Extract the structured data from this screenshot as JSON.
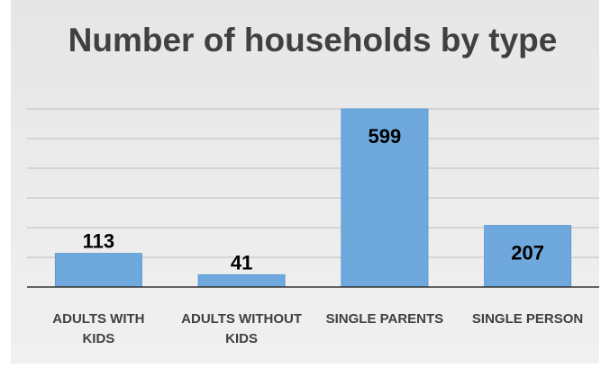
{
  "chart_data": {
    "type": "bar",
    "title": "Number of households by type",
    "categories": [
      [
        "ADULTS WITH",
        "KIDS"
      ],
      [
        "ADULTS WITHOUT",
        "KIDS"
      ],
      [
        "SINGLE PARENTS"
      ],
      [
        "SINGLE PERSON"
      ]
    ],
    "values": [
      113,
      41,
      599,
      207
    ],
    "data_labels": [
      "113",
      "41",
      "599",
      "207"
    ],
    "ylim": [
      0,
      700
    ],
    "grid": true,
    "legend": "none",
    "colors": {
      "bar": "#6fa8dc",
      "bar_edge": "#5b9bd5",
      "background": "#ececec",
      "gridline": "#bfbfbf",
      "axis": "#333333"
    }
  }
}
